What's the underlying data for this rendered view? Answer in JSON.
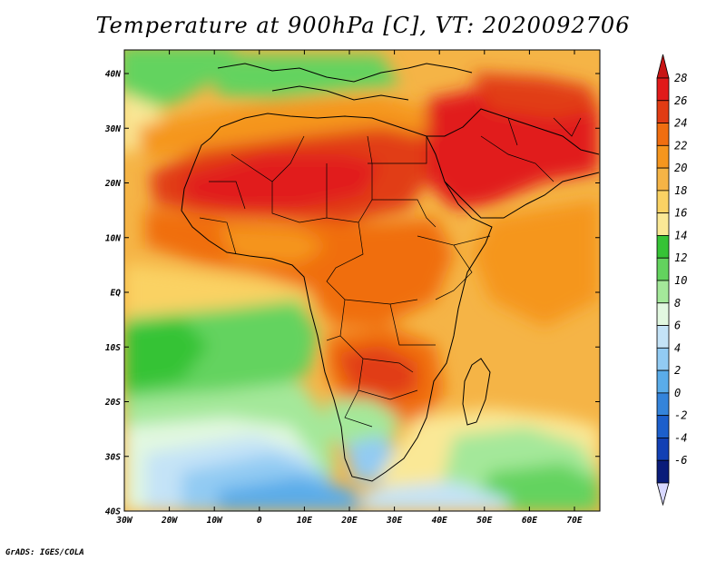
{
  "title": "Temperature at 900hPa [C], VT: 2020092706",
  "credit": "GrADS: IGES/COLA",
  "map": {
    "x_ticks": [
      "30W",
      "20W",
      "10W",
      "0",
      "10E",
      "20E",
      "30E",
      "40E",
      "50E",
      "60E",
      "70E"
    ],
    "y_ticks": [
      "40N",
      "30N",
      "20N",
      "10N",
      "EQ",
      "10S",
      "20S",
      "30S",
      "40S"
    ]
  },
  "colorbar": {
    "labels": [
      "28",
      "26",
      "24",
      "22",
      "20",
      "18",
      "16",
      "14",
      "12",
      "10",
      "8",
      "6",
      "4",
      "2",
      "0",
      "-2",
      "-4",
      "-6"
    ],
    "colors": [
      "#e11a1a",
      "#e13c14",
      "#f06e10",
      "#f5961e",
      "#f5b446",
      "#fad264",
      "#fae896",
      "#36c336",
      "#63d35e",
      "#a4e89a",
      "#e2f8e0",
      "#c4e3f7",
      "#92cbf3",
      "#5aace9",
      "#3484db",
      "#1c5fcc",
      "#1140b4",
      "#0a1c7a"
    ],
    "top_arrow_color": "#c81414",
    "bottom_arrow_color": "#d8d8ff"
  }
}
